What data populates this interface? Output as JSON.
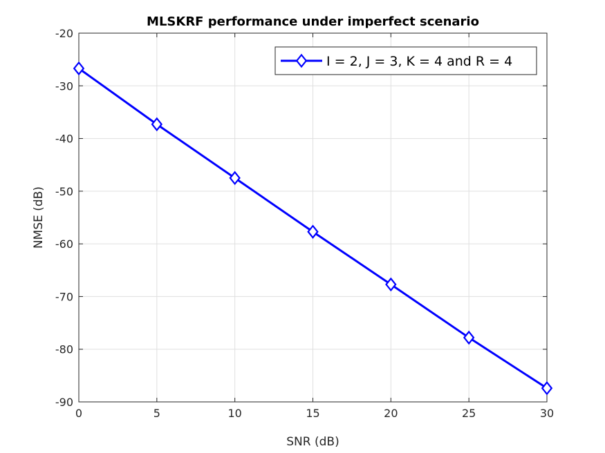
{
  "chart_data": {
    "type": "line",
    "title": "MLSKRF performance under imperfect scenario",
    "xlabel": "SNR (dB)",
    "ylabel": "NMSE (dB)",
    "xlim": [
      0,
      30
    ],
    "ylim": [
      -90,
      -20
    ],
    "xticks": [
      0,
      5,
      10,
      15,
      20,
      25,
      30
    ],
    "yticks": [
      -90,
      -80,
      -70,
      -60,
      -50,
      -40,
      -30,
      -20
    ],
    "grid": true,
    "legend_position": "top-right",
    "series": [
      {
        "name": "I = 2, J = 3, K = 4 and R = 4",
        "color": "#0000ff",
        "marker": "diamond",
        "x": [
          0,
          5,
          10,
          15,
          20,
          25,
          30
        ],
        "y": [
          -26.7,
          -37.3,
          -47.5,
          -57.7,
          -67.7,
          -77.8,
          -87.4
        ]
      }
    ]
  }
}
